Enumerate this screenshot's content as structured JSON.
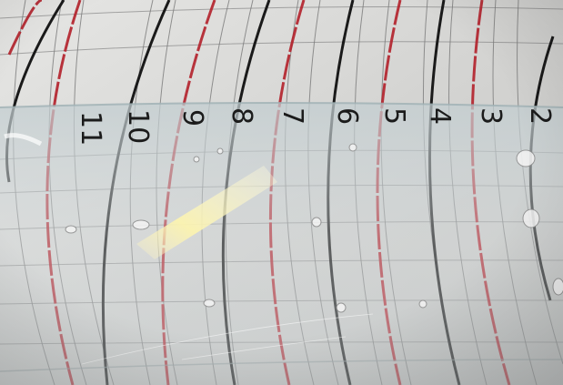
{
  "photo": {
    "subject": "transparent ruler strip over circular chart grid",
    "scale_numbers": [
      "11",
      "10",
      "9",
      "8",
      "7",
      "6",
      "5",
      "4",
      "3",
      "2"
    ]
  },
  "colors": {
    "paper": "#dcdcdc",
    "strip": "#cfd8da",
    "black_ring": "#1a1a1a",
    "red_ring": "#b22222",
    "thin_ring": "#7d7d7d",
    "grid_line": "#8a8a8a",
    "glare": "#f3eba0"
  }
}
